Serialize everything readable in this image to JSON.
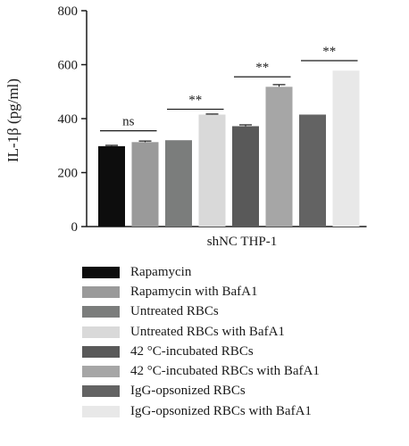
{
  "chart_data": {
    "type": "bar",
    "xlabel": "shNC THP-1",
    "ylabel": "IL-1β (pg/ml)",
    "ylim": [
      0,
      800
    ],
    "yticks": [
      0,
      200,
      400,
      600,
      800
    ],
    "series": [
      {
        "name": "Rapamycin",
        "value": 298,
        "error": 3,
        "color": "#0d0d0d"
      },
      {
        "name": "Rapamycin with BafA1",
        "value": 313,
        "error": 4,
        "color": "#9a9a9a"
      },
      {
        "name": "Untreated RBCs",
        "value": 320,
        "error": 0,
        "color": "#7b7d7c"
      },
      {
        "name": "Untreated RBCs with BafA1",
        "value": 415,
        "error": 2,
        "color": "#d9d9d9"
      },
      {
        "name": "42 °C-incubated RBCs",
        "value": 372,
        "error": 5,
        "color": "#595959"
      },
      {
        "name": "42 °C-incubated RBCs with BafA1",
        "value": 518,
        "error": 8,
        "color": "#a6a6a6"
      },
      {
        "name": "IgG-opsonized RBCs",
        "value": 415,
        "error": 0,
        "color": "#636363"
      },
      {
        "name": "IgG-opsonized RBCs with BafA1",
        "value": 578,
        "error": 0,
        "color": "#e8e8e8"
      }
    ],
    "significance": [
      {
        "bars": [
          0,
          1
        ],
        "label": "ns",
        "y": 355
      },
      {
        "bars": [
          2,
          3
        ],
        "label": "**",
        "y": 435
      },
      {
        "bars": [
          4,
          5
        ],
        "label": "**",
        "y": 555
      },
      {
        "bars": [
          6,
          7
        ],
        "label": "**",
        "y": 615
      }
    ],
    "legend_position": "bottom"
  }
}
